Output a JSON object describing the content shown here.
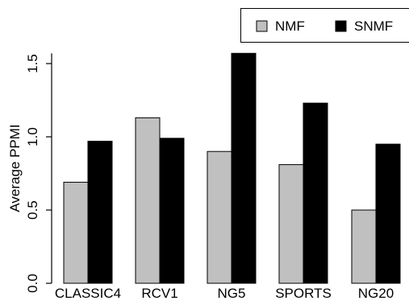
{
  "chart_data": {
    "type": "bar",
    "categories": [
      "CLASSIC4",
      "RCV1",
      "NG5",
      "SPORTS",
      "NG20"
    ],
    "series": [
      {
        "name": "NMF",
        "values": [
          0.69,
          1.13,
          0.9,
          0.81,
          0.5
        ],
        "color": "#c0c0c0"
      },
      {
        "name": "SNMF",
        "values": [
          0.97,
          0.99,
          1.57,
          1.23,
          0.95
        ],
        "color": "#000000"
      }
    ],
    "title": "",
    "xlabel": "",
    "ylabel": "Average PPMI",
    "ylim": [
      0,
      1.57
    ],
    "yticks": [
      "0.0",
      "0.5",
      "1.0",
      "1.5"
    ],
    "legend_position": "top-right",
    "grid": false
  }
}
